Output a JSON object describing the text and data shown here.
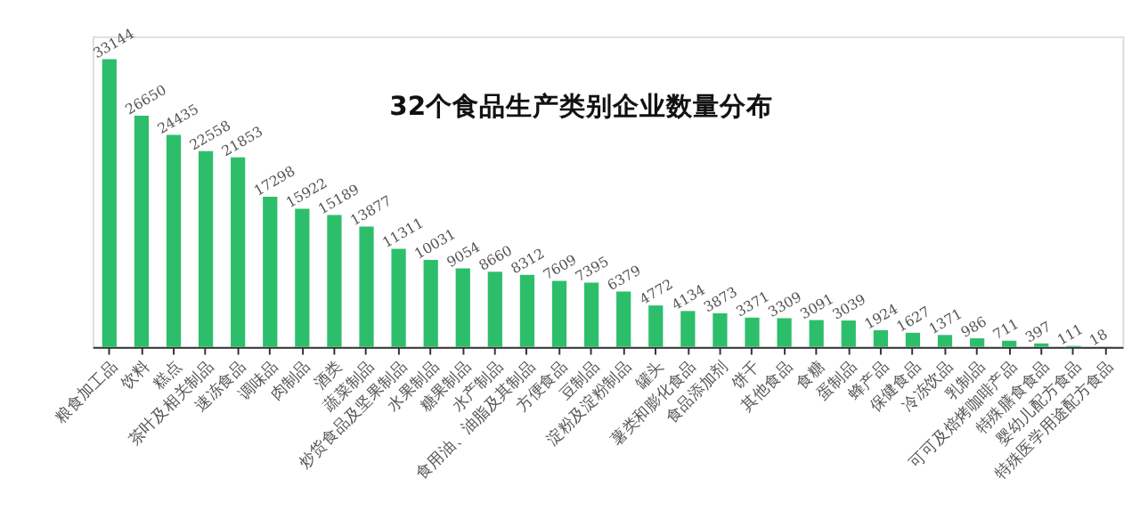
{
  "chart_data": {
    "type": "bar",
    "title": "32个食品生产类别企业数量分布",
    "categories": [
      "粮食加工品",
      "饮料",
      "糕点",
      "茶叶及相关制品",
      "速冻食品",
      "调味品",
      "肉制品",
      "酒类",
      "蔬菜制品",
      "炒货食品及坚果制品",
      "水果制品",
      "糖果制品",
      "水产制品",
      "食用油、油脂及其制品",
      "方便食品",
      "豆制品",
      "淀粉及淀粉制品",
      "罐头",
      "薯类和膨化食品",
      "食品添加剂",
      "饼干",
      "其他食品",
      "食糖",
      "蛋制品",
      "蜂产品",
      "保健食品",
      "冷冻饮品",
      "乳制品",
      "可可及焙烤咖啡产品",
      "特殊膳食食品",
      "婴幼儿配方食品",
      "特殊医学用途配方食品"
    ],
    "values": [
      33144,
      26650,
      24435,
      22558,
      21853,
      17298,
      15922,
      15189,
      13877,
      11311,
      10031,
      9054,
      8660,
      8312,
      7609,
      7395,
      6379,
      4772,
      4134,
      3873,
      3371,
      3309,
      3091,
      3039,
      1924,
      1627,
      1371,
      986,
      711,
      397,
      111,
      18
    ],
    "color": "#2dbe6c",
    "data_labels": true,
    "grid": false
  }
}
